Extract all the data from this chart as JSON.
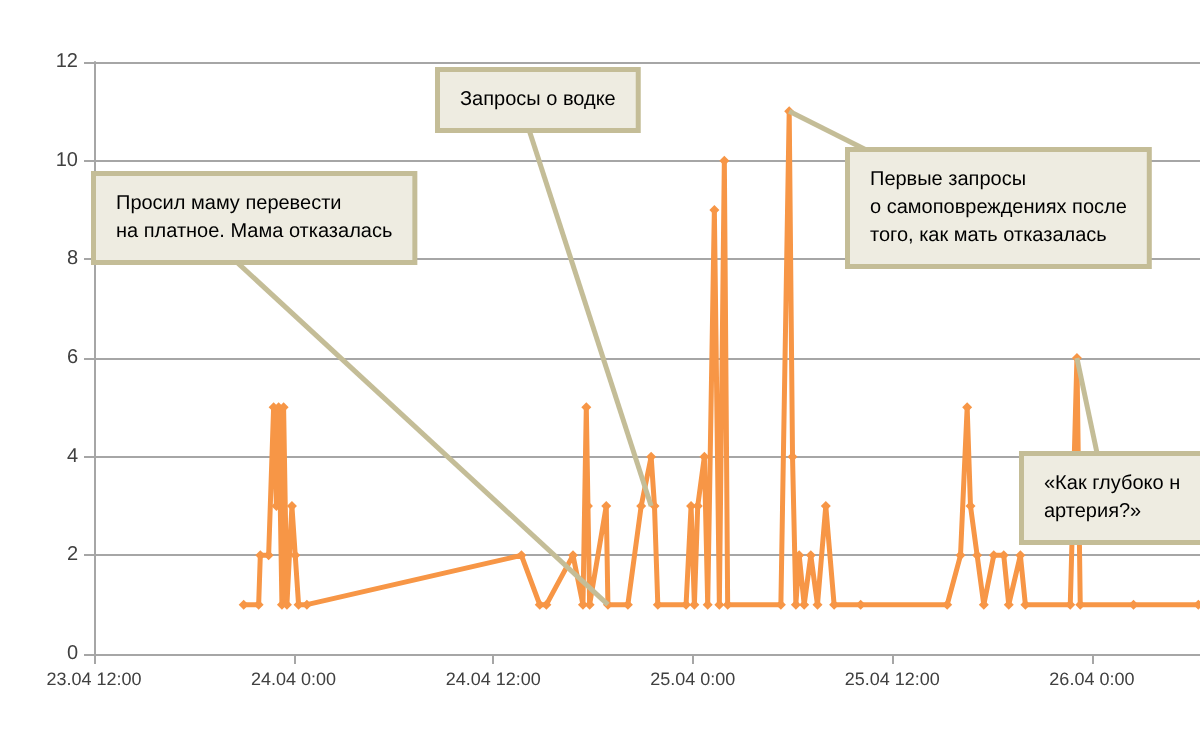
{
  "chart_data": {
    "type": "line",
    "color": "#f79646",
    "marker": "diamond",
    "line_style": "solid",
    "grid": "y",
    "xlim": [
      "--04-23T12:00",
      "--04-26T06:30"
    ],
    "xticks": [
      {
        "value": "--04-23T12:00",
        "label": "23.04 12:00"
      },
      {
        "value": "--04-24T00:00",
        "label": "24.04 0:00"
      },
      {
        "value": "--04-24T12:00",
        "label": "24.04 12:00"
      },
      {
        "value": "--04-25T00:00",
        "label": "25.04 0:00"
      },
      {
        "value": "--04-25T12:00",
        "label": "25.04 12:00"
      },
      {
        "value": "--04-26T00:00",
        "label": "26.04 0:00"
      }
    ],
    "ylim": [
      0,
      12
    ],
    "yticks": [
      0,
      2,
      4,
      6,
      8,
      10,
      12
    ],
    "x": [
      "--04-23T21:00",
      "--04-23T21:54",
      "--04-23T22:00",
      "--04-23T22:30",
      "--04-23T22:48",
      "--04-23T22:58",
      "--04-23T23:06",
      "--04-23T23:18",
      "--04-23T23:24",
      "--04-23T23:36",
      "--04-23T23:54",
      "--04-24T00:06",
      "--04-24T00:18",
      "--04-24T00:48",
      "--04-24T13:42",
      "--04-24T14:48",
      "--04-24T15:12",
      "--04-24T16:48",
      "--04-24T17:24",
      "--04-24T17:36",
      "--04-24T17:42",
      "--04-24T17:48",
      "--04-24T18:48",
      "--04-24T18:54",
      "--04-24T20:06",
      "--04-24T20:54",
      "--04-24T21:30",
      "--04-24T21:42",
      "--04-24T21:54",
      "--04-24T23:36",
      "--04-24T23:54",
      "--04-25T00:06",
      "--04-25T00:18",
      "--04-25T00:42",
      "--04-25T00:54",
      "--04-25T01:18",
      "--04-25T01:36",
      "--04-25T01:54",
      "--04-25T02:06",
      "--04-25T05:18",
      "--04-25T05:48",
      "--04-25T06:00",
      "--04-25T06:12",
      "--04-25T06:24",
      "--04-25T06:42",
      "--04-25T07:06",
      "--04-25T07:30",
      "--04-25T08:00",
      "--04-25T08:30",
      "--04-25T10:06",
      "--04-25T15:18",
      "--04-25T16:06",
      "--04-25T16:30",
      "--04-25T16:42",
      "--04-25T17:06",
      "--04-25T17:30",
      "--04-25T18:06",
      "--04-25T18:42",
      "--04-25T19:00",
      "--04-25T19:42",
      "--04-25T20:00",
      "--04-25T22:42",
      "--04-25T23:06",
      "--04-25T23:18",
      "--04-26T02:30",
      "--04-26T06:24"
    ],
    "values": [
      1,
      1,
      2,
      2,
      5,
      3,
      5,
      1,
      5,
      1,
      3,
      2,
      1,
      1,
      2,
      1,
      1,
      2,
      1,
      5,
      3,
      1,
      3,
      1,
      1,
      3,
      4,
      3,
      1,
      1,
      3,
      1,
      3,
      4,
      1,
      9,
      1,
      10,
      1,
      1,
      11,
      4,
      1,
      2,
      1,
      2,
      1,
      3,
      1,
      1,
      1,
      2,
      5,
      3,
      2,
      1,
      2,
      2,
      1,
      2,
      1,
      1,
      6,
      1,
      1,
      1
    ],
    "annotations": [
      {
        "text": "Просил маму перевести\nна платное. Мама отказалась",
        "x": "--04-24T18:54",
        "y": 1
      },
      {
        "text": "Запросы о водке",
        "x": "--04-24T21:30",
        "y": 3
      },
      {
        "text": "Первые запросы\nо самоповреждениях после\nтого, как мать отказалась",
        "x": "--04-25T05:48",
        "y": 11
      },
      {
        "text": "«Как глубоко н\nартерия?»",
        "x": "--04-25T23:06",
        "y": 6
      }
    ]
  }
}
